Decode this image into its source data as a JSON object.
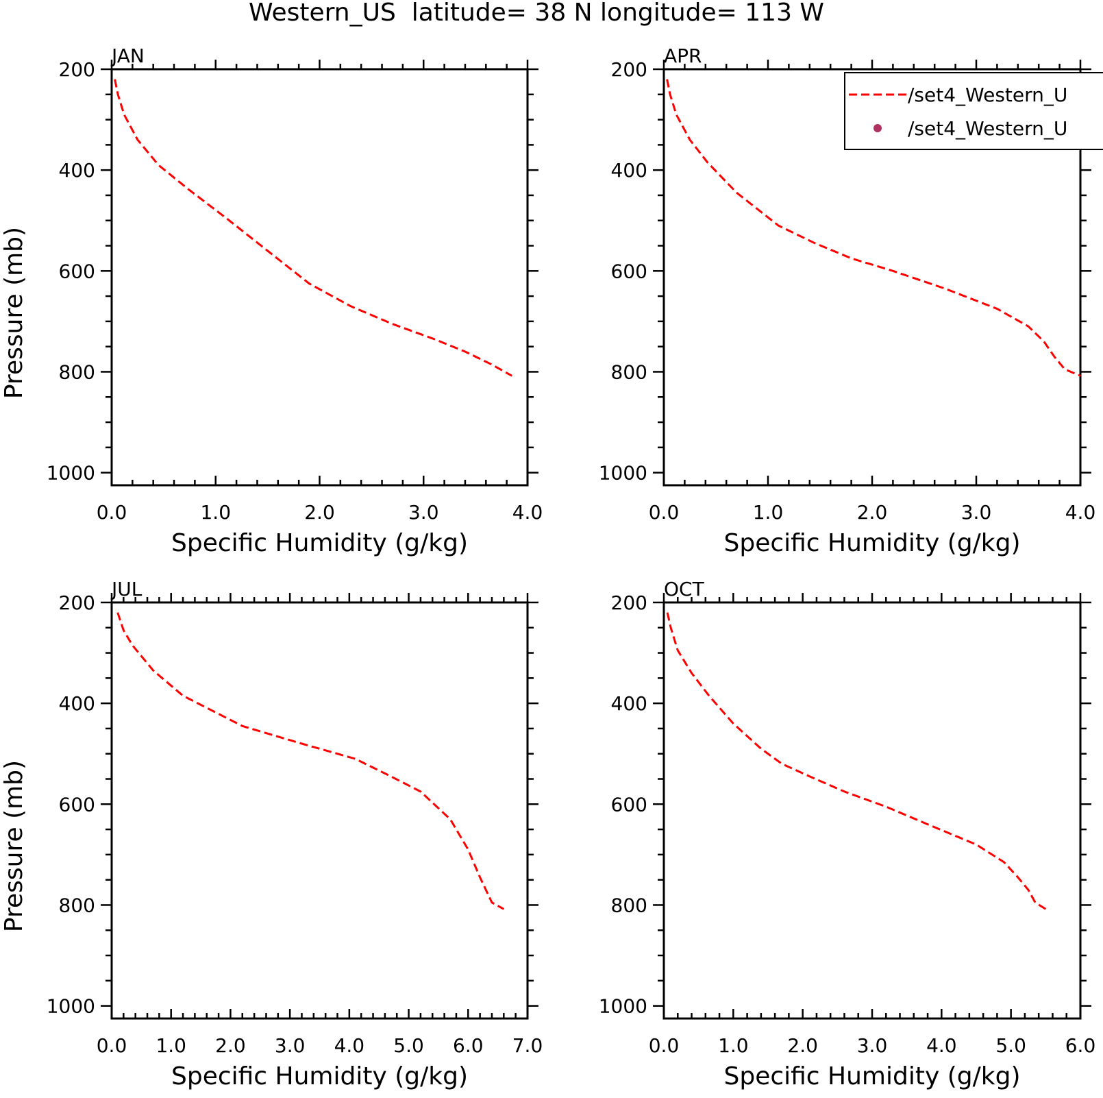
{
  "title": "Western_US  latitude= 38 N longitude= 113 W",
  "legend": {
    "placement": "top-right",
    "entries": [
      {
        "label": "/set4_Western_U",
        "style": "dashed-line",
        "color": "#ff0000"
      },
      {
        "label": "/set4_Western_U",
        "style": "dot",
        "color": "#b03060"
      }
    ]
  },
  "chart_data": [
    {
      "type": "line",
      "title": "JAN",
      "xlabel": "Specific Humidity (g/kg)",
      "ylabel": "Pressure (mb)",
      "xlim": [
        0,
        4
      ],
      "ylim": [
        200,
        1025
      ],
      "y_inverted": true,
      "xticks": [
        "0.0",
        "1.0",
        "2.0",
        "3.0",
        "4.0"
      ],
      "xtick_values": [
        0,
        1,
        2,
        3,
        4
      ],
      "yticks": [
        "200",
        "400",
        "600",
        "800",
        "1000"
      ],
      "ytick_values": [
        200,
        400,
        600,
        800,
        1000
      ],
      "series": [
        {
          "color": "#ff0000",
          "style": "dashed",
          "x": [
            0.03,
            0.06,
            0.12,
            0.25,
            0.45,
            0.75,
            1.1,
            1.5,
            1.9,
            2.3,
            2.7,
            3.1,
            3.4,
            3.65,
            3.85
          ],
          "y": [
            220,
            250,
            290,
            340,
            390,
            440,
            495,
            560,
            625,
            670,
            705,
            735,
            760,
            785,
            808
          ]
        }
      ]
    },
    {
      "type": "line",
      "title": "APR",
      "xlabel": "Specific Humidity (g/kg)",
      "ylabel": "",
      "xlim": [
        0,
        4
      ],
      "ylim": [
        200,
        1025
      ],
      "y_inverted": true,
      "xticks": [
        "0.0",
        "1.0",
        "2.0",
        "3.0",
        "4.0"
      ],
      "xtick_values": [
        0,
        1,
        2,
        3,
        4
      ],
      "yticks": [
        "200",
        "400",
        "600",
        "800",
        "1000"
      ],
      "ytick_values": [
        200,
        400,
        600,
        800,
        1000
      ],
      "series": [
        {
          "color": "#ff0000",
          "style": "dashed",
          "x": [
            0.03,
            0.06,
            0.12,
            0.25,
            0.42,
            0.7,
            1.1,
            1.45,
            1.8,
            2.2,
            2.7,
            3.2,
            3.5,
            3.65,
            3.75,
            3.85,
            4.0
          ],
          "y": [
            220,
            250,
            290,
            340,
            385,
            445,
            510,
            545,
            575,
            600,
            635,
            675,
            710,
            740,
            770,
            795,
            808
          ]
        }
      ]
    },
    {
      "type": "line",
      "title": "JUL",
      "xlabel": "Specific Humidity (g/kg)",
      "ylabel": "Pressure (mb)",
      "xlim": [
        0,
        7
      ],
      "ylim": [
        200,
        1025
      ],
      "y_inverted": true,
      "xticks": [
        "0.0",
        "1.0",
        "2.0",
        "3.0",
        "4.0",
        "5.0",
        "6.0",
        "7.0"
      ],
      "xtick_values": [
        0,
        1,
        2,
        3,
        4,
        5,
        6,
        7
      ],
      "yticks": [
        "200",
        "400",
        "600",
        "800",
        "1000"
      ],
      "ytick_values": [
        200,
        400,
        600,
        800,
        1000
      ],
      "series": [
        {
          "color": "#ff0000",
          "style": "dashed",
          "x": [
            0.1,
            0.2,
            0.35,
            0.7,
            1.2,
            2.2,
            3.2,
            4.1,
            4.7,
            5.2,
            5.7,
            6.0,
            6.2,
            6.4,
            6.6
          ],
          "y": [
            220,
            255,
            285,
            335,
            385,
            445,
            480,
            510,
            545,
            575,
            630,
            690,
            745,
            795,
            808
          ]
        }
      ]
    },
    {
      "type": "line",
      "title": "OCT",
      "xlabel": "Specific Humidity (g/kg)",
      "ylabel": "",
      "xlim": [
        0,
        6
      ],
      "ylim": [
        200,
        1025
      ],
      "y_inverted": true,
      "xticks": [
        "0.0",
        "1.0",
        "2.0",
        "3.0",
        "4.0",
        "5.0",
        "6.0"
      ],
      "xtick_values": [
        0,
        1,
        2,
        3,
        4,
        5,
        6
      ],
      "yticks": [
        "200",
        "400",
        "600",
        "800",
        "1000"
      ],
      "ytick_values": [
        200,
        400,
        600,
        800,
        1000
      ],
      "series": [
        {
          "color": "#ff0000",
          "style": "dashed",
          "x": [
            0.05,
            0.1,
            0.2,
            0.4,
            0.65,
            1.0,
            1.4,
            1.7,
            2.1,
            2.6,
            3.2,
            3.8,
            4.5,
            4.9,
            5.1,
            5.25,
            5.35,
            5.5
          ],
          "y": [
            220,
            250,
            295,
            340,
            385,
            440,
            490,
            520,
            545,
            575,
            605,
            640,
            680,
            715,
            745,
            770,
            795,
            808
          ]
        }
      ]
    }
  ]
}
